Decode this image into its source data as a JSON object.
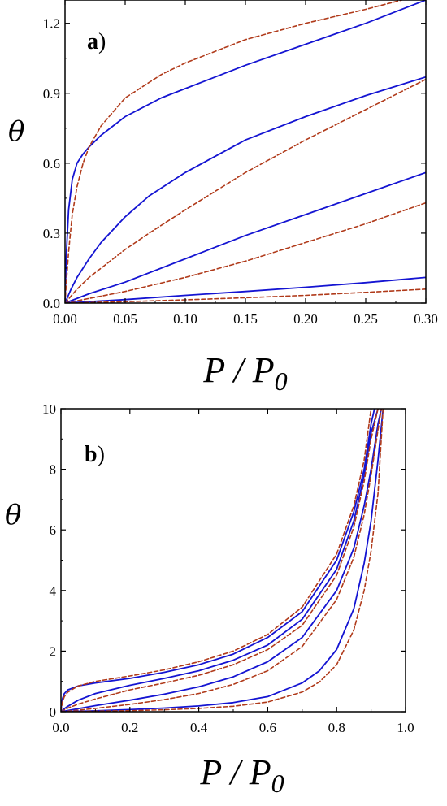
{
  "chart_data": [
    {
      "type": "line",
      "panel_label": "a",
      "panel_paren": ")",
      "xlabel": "P",
      "xlabel_sep": " / ",
      "xlabel_denominator": "P",
      "xlabel_subscript": "0",
      "ylabel": "θ",
      "xlim": [
        0,
        0.3
      ],
      "ylim": [
        0,
        1.3
      ],
      "xticks": [
        "0.00",
        "0.05",
        "0.10",
        "0.15",
        "0.20",
        "0.25",
        "0.30"
      ],
      "yticks": [
        "0.0",
        "0.3",
        "0.6",
        "0.9",
        "1.2"
      ],
      "xtick_values": [
        0,
        0.05,
        0.1,
        0.15,
        0.2,
        0.25,
        0.3
      ],
      "ytick_values": [
        0,
        0.3,
        0.6,
        0.9,
        1.2
      ],
      "series": [
        {
          "style": "solid",
          "color": "#1414d2",
          "x": [
            0,
            0.001,
            0.003,
            0.006,
            0.01,
            0.015,
            0.02,
            0.03,
            0.05,
            0.08,
            0.1,
            0.15,
            0.2,
            0.25,
            0.3
          ],
          "y": [
            0,
            0.2,
            0.4,
            0.53,
            0.6,
            0.64,
            0.67,
            0.72,
            0.8,
            0.88,
            0.92,
            1.02,
            1.11,
            1.2,
            1.3
          ]
        },
        {
          "style": "dashed",
          "color": "#b03a1a",
          "x": [
            0,
            0.001,
            0.003,
            0.006,
            0.01,
            0.015,
            0.02,
            0.03,
            0.05,
            0.08,
            0.1,
            0.15,
            0.2,
            0.25,
            0.28
          ],
          "y": [
            0,
            0.08,
            0.22,
            0.38,
            0.5,
            0.6,
            0.67,
            0.76,
            0.88,
            0.98,
            1.03,
            1.13,
            1.2,
            1.26,
            1.3
          ]
        },
        {
          "style": "solid",
          "color": "#1414d2",
          "x": [
            0,
            0.005,
            0.01,
            0.02,
            0.03,
            0.05,
            0.07,
            0.1,
            0.15,
            0.2,
            0.25,
            0.3
          ],
          "y": [
            0,
            0.06,
            0.11,
            0.19,
            0.26,
            0.37,
            0.46,
            0.56,
            0.7,
            0.8,
            0.89,
            0.97
          ]
        },
        {
          "style": "dashed",
          "color": "#b03a1a",
          "x": [
            0,
            0.01,
            0.02,
            0.03,
            0.05,
            0.07,
            0.1,
            0.15,
            0.2,
            0.25,
            0.3
          ],
          "y": [
            0,
            0.06,
            0.11,
            0.15,
            0.23,
            0.3,
            0.4,
            0.56,
            0.7,
            0.83,
            0.96
          ]
        },
        {
          "style": "solid",
          "color": "#1414d2",
          "x": [
            0,
            0.02,
            0.05,
            0.1,
            0.15,
            0.2,
            0.25,
            0.3
          ],
          "y": [
            0,
            0.04,
            0.09,
            0.19,
            0.29,
            0.38,
            0.47,
            0.56
          ]
        },
        {
          "style": "dashed",
          "color": "#b03a1a",
          "x": [
            0,
            0.02,
            0.05,
            0.1,
            0.15,
            0.2,
            0.25,
            0.3
          ],
          "y": [
            0,
            0.02,
            0.05,
            0.11,
            0.18,
            0.26,
            0.34,
            0.43
          ]
        },
        {
          "style": "solid",
          "color": "#1414d2",
          "x": [
            0,
            0.05,
            0.1,
            0.15,
            0.2,
            0.25,
            0.3
          ],
          "y": [
            0,
            0.015,
            0.033,
            0.05,
            0.068,
            0.088,
            0.11
          ]
        },
        {
          "style": "dashed",
          "color": "#b03a1a",
          "x": [
            0,
            0.05,
            0.1,
            0.15,
            0.2,
            0.25,
            0.3
          ],
          "y": [
            0,
            0.006,
            0.014,
            0.023,
            0.033,
            0.046,
            0.06
          ]
        }
      ]
    },
    {
      "type": "line",
      "panel_label": "b",
      "panel_paren": ")",
      "xlabel": "P",
      "xlabel_sep": " / ",
      "xlabel_denominator": "P",
      "xlabel_subscript": "0",
      "ylabel": "θ",
      "xlim": [
        0,
        1
      ],
      "ylim": [
        0,
        10
      ],
      "xticks": [
        "0.0",
        "0.2",
        "0.4",
        "0.6",
        "0.8",
        "1.0"
      ],
      "yticks": [
        "0",
        "2",
        "4",
        "6",
        "8",
        "10"
      ],
      "xtick_values": [
        0,
        0.2,
        0.4,
        0.6,
        0.8,
        1.0
      ],
      "ytick_values": [
        0,
        2,
        4,
        6,
        8,
        10
      ],
      "series": [
        {
          "style": "solid",
          "color": "#1414d2",
          "x": [
            0,
            0.002,
            0.005,
            0.01,
            0.02,
            0.05,
            0.1,
            0.2,
            0.3,
            0.4,
            0.5,
            0.6,
            0.7,
            0.8,
            0.85,
            0.88,
            0.9,
            0.91
          ],
          "y": [
            0,
            0.3,
            0.45,
            0.6,
            0.72,
            0.85,
            0.95,
            1.1,
            1.3,
            1.55,
            1.9,
            2.45,
            3.3,
            5.0,
            6.6,
            8.0,
            9.5,
            10
          ]
        },
        {
          "style": "dashed",
          "color": "#b03a1a",
          "x": [
            0,
            0.002,
            0.005,
            0.01,
            0.02,
            0.05,
            0.1,
            0.2,
            0.3,
            0.4,
            0.5,
            0.6,
            0.7,
            0.8,
            0.85,
            0.88,
            0.9
          ],
          "y": [
            0,
            0.15,
            0.35,
            0.5,
            0.65,
            0.85,
            1.0,
            1.18,
            1.38,
            1.65,
            2.0,
            2.55,
            3.45,
            5.2,
            6.8,
            8.3,
            10
          ]
        },
        {
          "style": "solid",
          "color": "#1414d2",
          "x": [
            0,
            0.01,
            0.02,
            0.05,
            0.1,
            0.2,
            0.3,
            0.4,
            0.5,
            0.6,
            0.7,
            0.8,
            0.85,
            0.88,
            0.9,
            0.92
          ],
          "y": [
            0,
            0.1,
            0.18,
            0.38,
            0.6,
            0.87,
            1.1,
            1.35,
            1.7,
            2.2,
            3.05,
            4.7,
            6.3,
            7.8,
            9.2,
            10
          ]
        },
        {
          "style": "dashed",
          "color": "#b03a1a",
          "x": [
            0,
            0.01,
            0.02,
            0.05,
            0.1,
            0.2,
            0.3,
            0.4,
            0.5,
            0.6,
            0.7,
            0.8,
            0.85,
            0.88,
            0.9,
            0.92
          ],
          "y": [
            0,
            0.06,
            0.12,
            0.25,
            0.42,
            0.72,
            0.95,
            1.2,
            1.55,
            2.05,
            2.85,
            4.5,
            6.1,
            7.6,
            9.0,
            10
          ]
        },
        {
          "style": "solid",
          "color": "#1414d2",
          "x": [
            0,
            0.05,
            0.1,
            0.2,
            0.3,
            0.4,
            0.5,
            0.6,
            0.7,
            0.8,
            0.85,
            0.88,
            0.9,
            0.92,
            0.93
          ],
          "y": [
            0,
            0.1,
            0.2,
            0.38,
            0.58,
            0.82,
            1.15,
            1.65,
            2.45,
            4.0,
            5.4,
            6.8,
            8.0,
            9.5,
            10
          ]
        },
        {
          "style": "dashed",
          "color": "#b03a1a",
          "x": [
            0,
            0.05,
            0.1,
            0.2,
            0.3,
            0.4,
            0.5,
            0.6,
            0.7,
            0.8,
            0.85,
            0.88,
            0.9,
            0.92,
            0.93
          ],
          "y": [
            0,
            0.05,
            0.11,
            0.24,
            0.4,
            0.6,
            0.9,
            1.35,
            2.15,
            3.7,
            5.1,
            6.5,
            7.8,
            9.3,
            10
          ]
        },
        {
          "style": "solid",
          "color": "#1414d2",
          "x": [
            0,
            0.1,
            0.2,
            0.3,
            0.4,
            0.5,
            0.6,
            0.7,
            0.75,
            0.8,
            0.85,
            0.88,
            0.9,
            0.92,
            0.935
          ],
          "y": [
            0,
            0.03,
            0.07,
            0.12,
            0.19,
            0.3,
            0.5,
            0.95,
            1.35,
            2.05,
            3.4,
            4.9,
            6.3,
            8.3,
            10
          ]
        },
        {
          "style": "dashed",
          "color": "#b03a1a",
          "x": [
            0,
            0.1,
            0.2,
            0.3,
            0.4,
            0.5,
            0.6,
            0.7,
            0.75,
            0.8,
            0.85,
            0.88,
            0.9,
            0.92,
            0.935
          ],
          "y": [
            0,
            0.015,
            0.035,
            0.065,
            0.11,
            0.18,
            0.32,
            0.65,
            0.98,
            1.55,
            2.7,
            4.0,
            5.3,
            7.2,
            10
          ]
        }
      ]
    }
  ]
}
